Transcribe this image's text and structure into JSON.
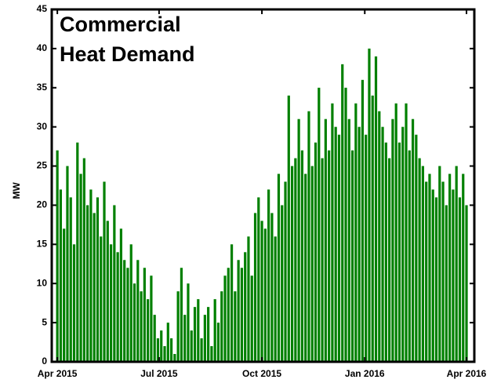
{
  "chart_data": {
    "type": "bar",
    "title": [
      "Commercial",
      "Heat Demand"
    ],
    "ylabel": "MW",
    "color": "#008000",
    "x": [
      0,
      3,
      6,
      9,
      12,
      15,
      18,
      21,
      24,
      27,
      30,
      33,
      36,
      39,
      42,
      45,
      48,
      51,
      54,
      57,
      60,
      63,
      66,
      69,
      72,
      75,
      78,
      81,
      84,
      87,
      90,
      93,
      96,
      99,
      102,
      105,
      108,
      111,
      114,
      117,
      120,
      123,
      126,
      129,
      132,
      135,
      138,
      141,
      144,
      147,
      150,
      153,
      156,
      159,
      162,
      165,
      168,
      171,
      174,
      177,
      180,
      183,
      186,
      189,
      192,
      195,
      198,
      201,
      204,
      207,
      210,
      213,
      216,
      219,
      222,
      225,
      228,
      231,
      234,
      237,
      240,
      243,
      246,
      249,
      252,
      255,
      258,
      261,
      264,
      267,
      270,
      273,
      276,
      279,
      282,
      285,
      288,
      291,
      294,
      297,
      300,
      303,
      306,
      309,
      312,
      315,
      318,
      321,
      324,
      327,
      330,
      333,
      336,
      339,
      342,
      345,
      348,
      351,
      354,
      357,
      360,
      363,
      366
    ],
    "values": [
      27,
      22,
      17,
      25,
      21,
      15,
      28,
      24,
      26,
      20,
      22,
      19,
      21,
      16,
      23,
      18,
      15,
      20,
      14,
      17,
      13,
      12,
      15,
      10,
      13,
      9,
      12,
      8,
      11,
      6,
      3,
      4,
      2,
      5,
      3,
      1,
      9,
      12,
      6,
      10,
      4,
      7,
      8,
      3,
      6,
      7,
      2,
      8,
      5,
      9,
      11,
      12,
      15,
      9,
      13,
      12,
      14,
      16,
      11,
      19,
      21,
      18,
      17,
      22,
      19,
      16,
      24,
      20,
      23,
      34,
      25,
      26,
      31,
      27,
      24,
      32,
      25,
      28,
      35,
      26,
      31,
      27,
      33,
      30,
      29,
      38,
      35,
      31,
      27,
      33,
      30,
      36,
      29,
      40,
      34,
      39,
      32,
      30,
      28,
      26,
      31,
      33,
      28,
      30,
      33,
      27,
      31,
      29,
      26,
      25,
      23,
      24,
      22,
      21,
      25,
      23,
      20,
      24,
      22,
      25,
      21,
      24,
      20
    ],
    "xlim": [
      -5,
      373
    ],
    "xticks": [
      {
        "value": 0,
        "label": "Apr 2015"
      },
      {
        "value": 91,
        "label": "Jul 2015"
      },
      {
        "value": 183,
        "label": "Oct 2015"
      },
      {
        "value": 275,
        "label": "Jan 2016"
      },
      {
        "value": 366,
        "label": "Apr 2016"
      }
    ],
    "ylim": [
      0,
      45
    ],
    "yticks": [
      0,
      5,
      10,
      15,
      20,
      25,
      30,
      35,
      40,
      45
    ]
  }
}
